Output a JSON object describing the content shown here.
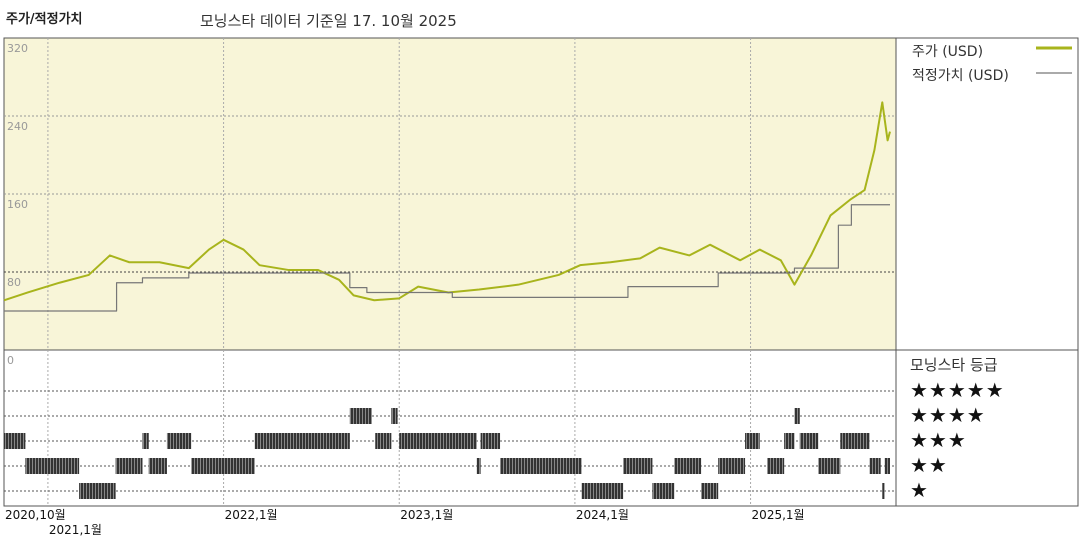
{
  "header": {
    "title": "주가/적정가치",
    "subtitle": "모닝스타 데이터 기준일 17. 10월 2025"
  },
  "legend": {
    "price_label": "주가 (USD)",
    "fair_label": "적정가치 (USD)",
    "rating_title": "모닝스타 등급",
    "star_rows": [
      "★★★★★",
      "★★★★",
      "★★★",
      "★★",
      "★"
    ]
  },
  "colors": {
    "price": "#a8b41c",
    "fair": "#777777",
    "plot_bg": "#f8f5d8",
    "rating_bar": "#333333"
  },
  "chart_data": {
    "type": "line",
    "title": "주가/적정가치",
    "ylim": [
      0,
      320
    ],
    "yticks": [
      "320",
      "240",
      "160",
      "80",
      "0"
    ],
    "ytick_values": [
      320,
      240,
      160,
      80,
      0
    ],
    "xlim": [
      "2020-10-01",
      "2025-10-17"
    ],
    "xticks": [
      {
        "date": "2020-10-01",
        "label": "2020,10월"
      },
      {
        "date": "2021-01-01",
        "label": "2021,1월"
      },
      {
        "date": "2022-01-01",
        "label": "2022,1월"
      },
      {
        "date": "2023-01-01",
        "label": "2023,1월"
      },
      {
        "date": "2024-01-01",
        "label": "2024,1월"
      },
      {
        "date": "2025-01-01",
        "label": "2025,1월"
      }
    ],
    "grid": true,
    "legend_position": "right",
    "series": [
      {
        "name": "주가 (USD)",
        "points": [
          [
            "2020-10-01",
            51
          ],
          [
            "2020-11-20",
            59
          ],
          [
            "2021-01-25",
            69
          ],
          [
            "2021-03-25",
            77
          ],
          [
            "2021-05-08",
            97
          ],
          [
            "2021-06-18",
            90
          ],
          [
            "2021-08-20",
            90
          ],
          [
            "2021-10-20",
            84
          ],
          [
            "2021-12-01",
            103
          ],
          [
            "2022-01-01",
            113
          ],
          [
            "2022-02-12",
            103
          ],
          [
            "2022-03-15",
            87
          ],
          [
            "2022-05-15",
            82
          ],
          [
            "2022-07-15",
            82
          ],
          [
            "2022-08-28",
            72
          ],
          [
            "2022-09-28",
            56
          ],
          [
            "2022-11-10",
            51
          ],
          [
            "2023-01-01",
            53
          ],
          [
            "2023-02-10",
            65
          ],
          [
            "2023-04-12",
            59
          ],
          [
            "2023-06-15",
            62
          ],
          [
            "2023-09-05",
            67
          ],
          [
            "2023-11-28",
            77
          ],
          [
            "2024-01-12",
            87
          ],
          [
            "2024-03-14",
            90
          ],
          [
            "2024-05-15",
            94
          ],
          [
            "2024-06-25",
            105
          ],
          [
            "2024-08-26",
            97
          ],
          [
            "2024-10-08",
            108
          ],
          [
            "2024-12-10",
            92
          ],
          [
            "2025-01-20",
            103
          ],
          [
            "2025-03-03",
            92
          ],
          [
            "2025-04-01",
            67
          ],
          [
            "2025-05-05",
            97
          ],
          [
            "2025-06-15",
            138
          ],
          [
            "2025-07-25",
            154
          ],
          [
            "2025-08-25",
            164
          ],
          [
            "2025-09-15",
            205
          ],
          [
            "2025-10-01",
            254
          ],
          [
            "2025-10-12",
            215
          ],
          [
            "2025-10-17",
            224
          ]
        ]
      },
      {
        "name": "적정가치 (USD)",
        "step": true,
        "points": [
          [
            "2020-10-01",
            40
          ],
          [
            "2021-05-22",
            69
          ],
          [
            "2021-07-15",
            74
          ],
          [
            "2021-10-20",
            79
          ],
          [
            "2022-09-20",
            64
          ],
          [
            "2022-10-25",
            59
          ],
          [
            "2023-04-20",
            54
          ],
          [
            "2024-04-20",
            65
          ],
          [
            "2024-10-25",
            79
          ],
          [
            "2025-04-01",
            84
          ],
          [
            "2025-07-01",
            128
          ],
          [
            "2025-07-28",
            149
          ],
          [
            "2025-10-17",
            149
          ]
        ]
      }
    ],
    "ratings": [
      [
        "2020-10-01",
        "2020-11-15",
        3
      ],
      [
        "2020-11-15",
        "2021-03-05",
        2
      ],
      [
        "2021-03-05",
        "2021-05-20",
        1
      ],
      [
        "2021-05-20",
        "2021-07-15",
        2
      ],
      [
        "2021-07-15",
        "2021-07-28",
        3
      ],
      [
        "2021-07-28",
        "2021-09-05",
        2
      ],
      [
        "2021-09-05",
        "2021-10-25",
        3
      ],
      [
        "2021-10-25",
        "2022-03-05",
        2
      ],
      [
        "2022-03-05",
        "2022-09-20",
        3
      ],
      [
        "2022-09-20",
        "2022-11-05",
        4
      ],
      [
        "2022-11-12",
        "2022-12-15",
        3
      ],
      [
        "2022-12-15",
        "2022-12-28",
        4
      ],
      [
        "2023-01-01",
        "2023-06-10",
        3
      ],
      [
        "2023-06-10",
        "2023-06-18",
        2
      ],
      [
        "2023-06-18",
        "2023-07-28",
        3
      ],
      [
        "2023-07-28",
        "2024-01-15",
        2
      ],
      [
        "2024-01-15",
        "2024-04-10",
        1
      ],
      [
        "2024-04-10",
        "2024-06-10",
        2
      ],
      [
        "2024-06-10",
        "2024-07-25",
        1
      ],
      [
        "2024-07-25",
        "2024-09-20",
        2
      ],
      [
        "2024-09-20",
        "2024-10-25",
        1
      ],
      [
        "2024-10-25",
        "2024-12-20",
        2
      ],
      [
        "2024-12-20",
        "2025-01-20",
        3
      ],
      [
        "2025-02-05",
        "2025-03-10",
        2
      ],
      [
        "2025-03-10",
        "2025-04-01",
        3
      ],
      [
        "2025-04-01",
        "2025-04-12",
        4
      ],
      [
        "2025-04-12",
        "2025-05-20",
        3
      ],
      [
        "2025-05-20",
        "2025-07-05",
        2
      ],
      [
        "2025-07-05",
        "2025-09-05",
        3
      ],
      [
        "2025-09-05",
        "2025-09-28",
        2
      ],
      [
        "2025-10-01",
        "2025-10-06",
        1
      ],
      [
        "2025-10-06",
        "2025-10-17",
        2
      ]
    ]
  }
}
